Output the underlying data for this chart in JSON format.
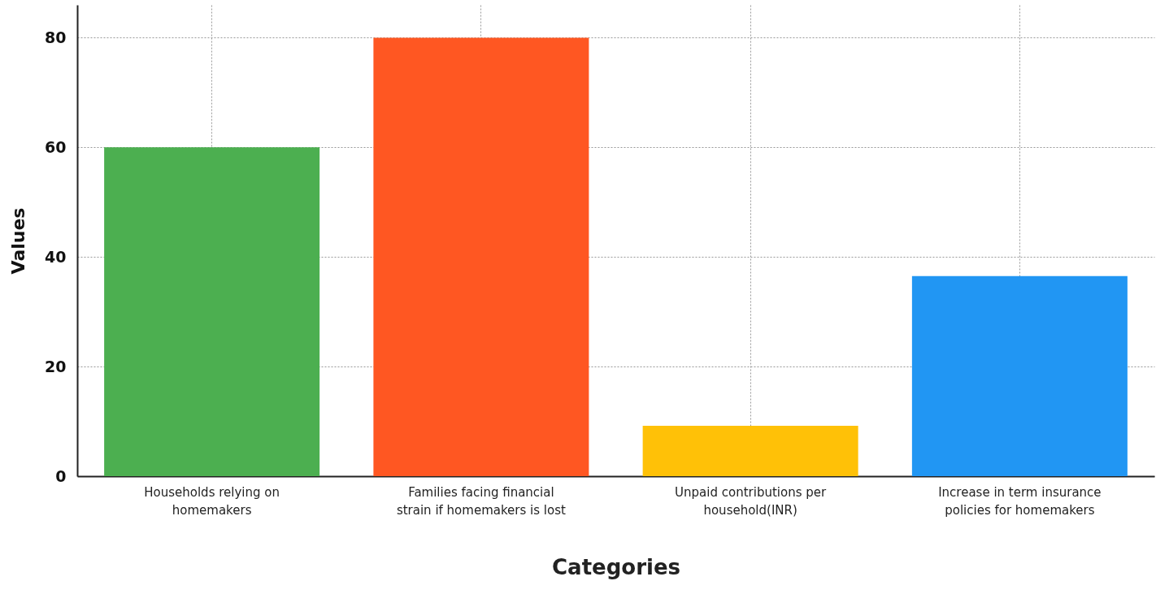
{
  "chart_data": {
    "type": "bar",
    "xlabel": "Categories",
    "ylabel": "Values",
    "categories": [
      "Households relying on homemakers",
      "Families facing financial strain if homemakers is lost",
      "Unpaid contributions per household(INR)",
      "Increase in term insurance policies for homemakers"
    ],
    "values": [
      60,
      80,
      9.2,
      36.5
    ],
    "colors": [
      "#4caf50",
      "#ff5722",
      "#ffc107",
      "#2196f3"
    ],
    "ylim": [
      0,
      86
    ],
    "yticks": [
      0,
      20,
      40,
      60,
      80
    ],
    "grid": true
  }
}
